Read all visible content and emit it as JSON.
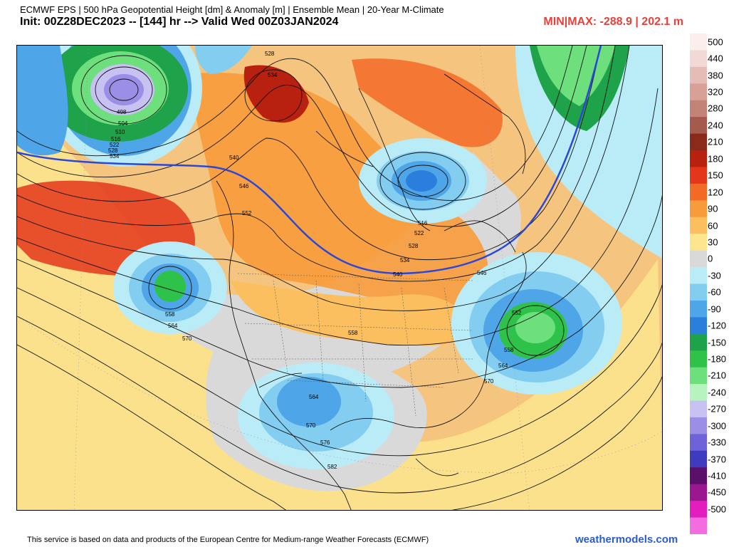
{
  "header": {
    "line1": "ECMWF EPS | 500 hPa Geopotential Height [dm] & Anomaly [m] | Ensemble Mean | 20-Year M-Climate",
    "line2": "Init: 00Z28DEC2023 -- [144] hr --> Valid Wed 00Z03JAN2024",
    "minmax": "MIN|MAX: -288.9 | 202.1 m"
  },
  "colorbar": {
    "labels": [
      "500",
      "440",
      "380",
      "320",
      "280",
      "240",
      "210",
      "180",
      "150",
      "120",
      "90",
      "60",
      "30",
      "0",
      "-30",
      "-60",
      "-90",
      "-120",
      "-150",
      "-180",
      "-210",
      "-240",
      "-270",
      "-300",
      "-330",
      "-370",
      "-410",
      "-450",
      "-500"
    ],
    "colors": [
      "#fbeeec",
      "#f3d9d5",
      "#e6bdb6",
      "#d8a096",
      "#c48377",
      "#a45a4c",
      "#8a2a1a",
      "#b8200f",
      "#e3361a",
      "#f36a26",
      "#f89b3b",
      "#fbbf60",
      "#fde58f",
      "#d9d9d9",
      "#b9ecf7",
      "#83cdf0",
      "#4ea6e8",
      "#2a7fdc",
      "#1ea34a",
      "#2fc24a",
      "#6de07d",
      "#b6f3be",
      "#c8c2f2",
      "#9a8ee6",
      "#6d62d8",
      "#3f3bbf",
      "#5a0f6b",
      "#9a1790",
      "#e21fbe",
      "#f36de0"
    ]
  },
  "contour_labels": [
    {
      "text": "528"
    },
    {
      "text": "534"
    },
    {
      "text": "498"
    },
    {
      "text": "504"
    },
    {
      "text": "510"
    },
    {
      "text": "516"
    },
    {
      "text": "522"
    },
    {
      "text": "528"
    },
    {
      "text": "534"
    },
    {
      "text": "540"
    },
    {
      "text": "546"
    },
    {
      "text": "552"
    },
    {
      "text": "558"
    },
    {
      "text": "564"
    },
    {
      "text": "570"
    },
    {
      "text": "516"
    },
    {
      "text": "522"
    },
    {
      "text": "528"
    },
    {
      "text": "534"
    },
    {
      "text": "540"
    },
    {
      "text": "546"
    },
    {
      "text": "552"
    },
    {
      "text": "558"
    },
    {
      "text": "564"
    },
    {
      "text": "570"
    },
    {
      "text": "558"
    },
    {
      "text": "564"
    },
    {
      "text": "570"
    },
    {
      "text": "576"
    },
    {
      "text": "582"
    },
    {
      "text": "540"
    },
    {
      "text": "546"
    }
  ],
  "footer": {
    "credit": "This service is based on data and products of the European Centre for Medium-range Weather Forecasts (ECMWF)",
    "site": "weathermodels.com"
  }
}
